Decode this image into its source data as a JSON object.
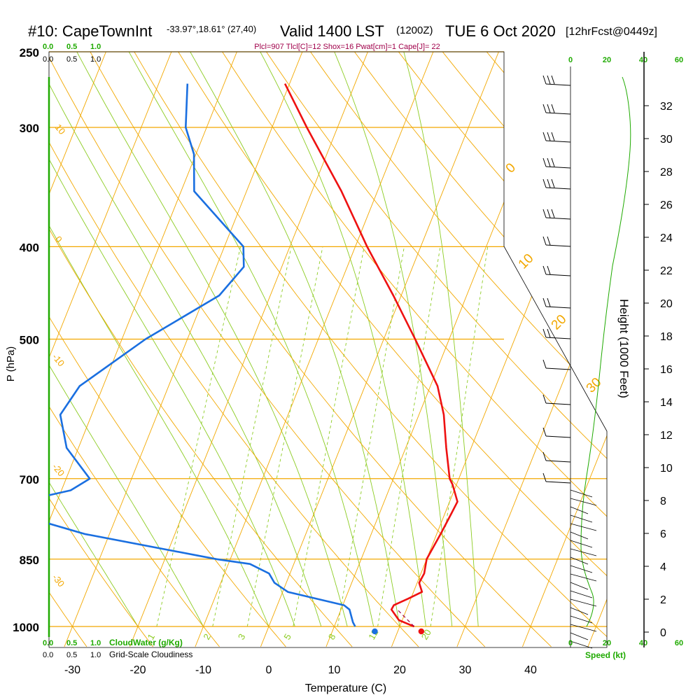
{
  "header": {
    "station": "#10: CapeTownInt",
    "coords": "-33.97°,18.61° (27,40)",
    "valid": "Valid 1400 LST",
    "zulu": "(1200Z)",
    "date": "TUE 6 Oct 2020",
    "forecast": "[12hrFcst@0449z]",
    "indices": "Plcl=907 Tlcl[C]=12 Shox=16 Pwat[cm]=1 Cape[J]= 22"
  },
  "colors": {
    "temperature": "#ee1111",
    "dewpoint": "#1a6fe0",
    "isobar": "#f2a800",
    "mixing_ratio": "#8ccc22",
    "green_text": "#1faa00",
    "magenta_text": "#a0004a",
    "grid_black": "#000000"
  },
  "scales": {
    "cloudwater_ticks": [
      "0.0",
      "0.5",
      "1.0"
    ],
    "cloudiness_ticks": [
      "0.0",
      "0.5",
      "1.0"
    ],
    "cloudwater_label": "CloudWater (g/Kg)",
    "cloudiness_label": "Grid-Scale Cloudiness",
    "speed_ticks": [
      "0",
      "20",
      "40",
      "60"
    ],
    "speed_label": "Speed (kt)"
  },
  "chart_data": {
    "type": "line",
    "subtype": "skew-T log-P sounding",
    "xlabel": "Temperature (C)",
    "ylabel": "P (hPa)",
    "y2label": "Height (1000 Feet)",
    "x_ticks": [
      -30,
      -20,
      -10,
      0,
      10,
      20,
      30,
      40
    ],
    "x_tick_labels": [
      "-30",
      "-20",
      "-10",
      "0",
      "10",
      "20",
      "30",
      "40"
    ],
    "p_ticks": [
      250,
      300,
      400,
      500,
      700,
      850,
      1000
    ],
    "p_tick_labels": [
      "250",
      "300",
      "400",
      "500",
      "700",
      "850",
      "1000"
    ],
    "height_ticks": [
      0,
      2,
      4,
      6,
      8,
      10,
      12,
      14,
      16,
      18,
      20,
      22,
      24,
      26,
      28,
      30,
      32
    ],
    "height_tick_labels": [
      "0",
      "2",
      "4",
      "6",
      "8",
      "10",
      "12",
      "14",
      "16",
      "18",
      "20",
      "22",
      "24",
      "26",
      "28",
      "30",
      "32"
    ],
    "isotherm_labels": [
      {
        "text": "10",
        "p": 300
      },
      {
        "text": "0",
        "p": 400
      },
      {
        "text": "-10",
        "p": 520
      },
      {
        "text": "-20",
        "p": 670
      },
      {
        "text": "-30",
        "p": 870
      },
      {
        "text": "0",
        "p": 340
      },
      {
        "text": "10",
        "p": 420
      },
      {
        "text": "20",
        "p": 495
      },
      {
        "text": "30",
        "p": 580
      }
    ],
    "mixing_ratio_labels": [
      "1",
      "2",
      "3",
      "5",
      "8",
      "12",
      "20"
    ],
    "series": [
      {
        "name": "Temperature",
        "color": "#ee1111",
        "points": [
          {
            "p": 1000,
            "t": 22.2
          },
          {
            "p": 985,
            "t": 19.5
          },
          {
            "p": 960,
            "t": 17.7
          },
          {
            "p": 950,
            "t": 17.8
          },
          {
            "p": 935,
            "t": 19.6
          },
          {
            "p": 920,
            "t": 21.3
          },
          {
            "p": 900,
            "t": 20.3
          },
          {
            "p": 880,
            "t": 20.5
          },
          {
            "p": 850,
            "t": 20.0
          },
          {
            "p": 800,
            "t": 20.6
          },
          {
            "p": 760,
            "t": 21.0
          },
          {
            "p": 740,
            "t": 21.2
          },
          {
            "p": 710,
            "t": 19.4
          },
          {
            "p": 700,
            "t": 18.6
          },
          {
            "p": 650,
            "t": 16.2
          },
          {
            "p": 600,
            "t": 13.8
          },
          {
            "p": 560,
            "t": 11.1
          },
          {
            "p": 500,
            "t": 4.8
          },
          {
            "p": 450,
            "t": -1.2
          },
          {
            "p": 400,
            "t": -8.2
          },
          {
            "p": 350,
            "t": -15.5
          },
          {
            "p": 300,
            "t": -24.7
          },
          {
            "p": 270,
            "t": -30.7
          }
        ]
      },
      {
        "name": "Dew point",
        "color": "#1a6fe0",
        "points": [
          {
            "p": 1000,
            "t": 13.2
          },
          {
            "p": 990,
            "t": 12.6
          },
          {
            "p": 960,
            "t": 11.3
          },
          {
            "p": 950,
            "t": 10.2
          },
          {
            "p": 920,
            "t": 0.8
          },
          {
            "p": 900,
            "t": -1.8
          },
          {
            "p": 880,
            "t": -3.2
          },
          {
            "p": 860,
            "t": -6.7
          },
          {
            "p": 850,
            "t": -12.1
          },
          {
            "p": 800,
            "t": -33.8
          },
          {
            "p": 760,
            "t": -46.2
          },
          {
            "p": 740,
            "t": -45.6
          },
          {
            "p": 720,
            "t": -38.6
          },
          {
            "p": 700,
            "t": -36.4
          },
          {
            "p": 650,
            "t": -41.8
          },
          {
            "p": 600,
            "t": -44.8
          },
          {
            "p": 560,
            "t": -43.6
          },
          {
            "p": 500,
            "t": -36.4
          },
          {
            "p": 450,
            "t": -27.8
          },
          {
            "p": 420,
            "t": -25.8
          },
          {
            "p": 400,
            "t": -27.1
          },
          {
            "p": 350,
            "t": -38.0
          },
          {
            "p": 320,
            "t": -40.3
          },
          {
            "p": 300,
            "t": -43.2
          },
          {
            "p": 270,
            "t": -45.6
          }
        ]
      },
      {
        "name": "Parcel",
        "color": "#a0004a",
        "dashed": true,
        "points": [
          {
            "p": 1000,
            "t": 22.2
          },
          {
            "p": 960,
            "t": 18.6
          }
        ]
      }
    ],
    "surface_markers": [
      {
        "name": "Surface dew point",
        "color": "#1a6fe0",
        "t": 16.2,
        "p": 1000
      },
      {
        "name": "Surface temperature",
        "color": "#ee1111",
        "t": 23.3,
        "p": 1000
      }
    ]
  }
}
